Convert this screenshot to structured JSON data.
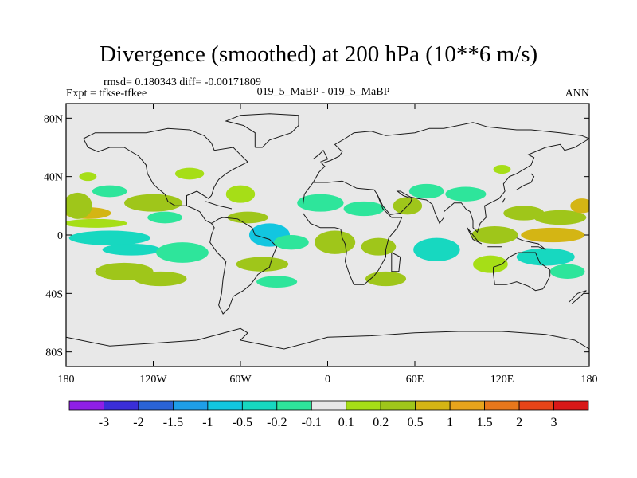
{
  "chart_data": {
    "type": "heatmap",
    "title": "Divergence (smoothed) at 200 hPa (10**6 m/s)",
    "stats": "rmsd= 0.180343  diff= -0.00171809",
    "expt": "Expt = tfkse-tfkee",
    "subtitle": "019_5_MaBP - 019_5_MaBP",
    "season": "ANN",
    "x_range": [
      -180,
      180
    ],
    "y_range": [
      -90,
      90
    ],
    "x_ticks": [
      {
        "value": -180,
        "label": "180"
      },
      {
        "value": -120,
        "label": "120W"
      },
      {
        "value": -60,
        "label": "60W"
      },
      {
        "value": 0,
        "label": "0"
      },
      {
        "value": 60,
        "label": "60E"
      },
      {
        "value": 120,
        "label": "120E"
      },
      {
        "value": 180,
        "label": "180"
      }
    ],
    "y_ticks": [
      {
        "value": 80,
        "label": "80N"
      },
      {
        "value": 40,
        "label": "40N"
      },
      {
        "value": 0,
        "label": "0"
      },
      {
        "value": -40,
        "label": "40S"
      },
      {
        "value": -80,
        "label": "80S"
      }
    ],
    "colorbar": {
      "labels": [
        "-3",
        "-2",
        "-1.5",
        "-1",
        "-0.5",
        "-0.2",
        "-0.1",
        "0.1",
        "0.2",
        "0.5",
        "1",
        "1.5",
        "2",
        "3"
      ],
      "colors": [
        "#8f1fe6",
        "#3a2ed8",
        "#2a63d6",
        "#1e9ee8",
        "#12c6e0",
        "#17d8c0",
        "#2ee59b",
        "#e8e8e8",
        "#a6de17",
        "#9fc61a",
        "#d4b514",
        "#e8a41c",
        "#e8771b",
        "#e84418",
        "#d81818"
      ]
    },
    "fields": [
      {
        "lon": -165,
        "lat": 15,
        "rx": 16,
        "ry": 4,
        "level": 10
      },
      {
        "lon": -172,
        "lat": 20,
        "rx": 10,
        "ry": 9,
        "level": 9
      },
      {
        "lon": -160,
        "lat": 8,
        "rx": 22,
        "ry": 3,
        "level": 8
      },
      {
        "lon": -150,
        "lat": 30,
        "rx": 12,
        "ry": 4,
        "level": 6
      },
      {
        "lon": -150,
        "lat": -2,
        "rx": 28,
        "ry": 5,
        "level": 5
      },
      {
        "lon": -135,
        "lat": -10,
        "rx": 20,
        "ry": 4,
        "level": 5
      },
      {
        "lon": -140,
        "lat": -25,
        "rx": 20,
        "ry": 6,
        "level": 9
      },
      {
        "lon": -115,
        "lat": -30,
        "rx": 18,
        "ry": 5,
        "level": 9
      },
      {
        "lon": -120,
        "lat": 22,
        "rx": 20,
        "ry": 6,
        "level": 9
      },
      {
        "lon": -112,
        "lat": 12,
        "rx": 12,
        "ry": 4,
        "level": 6
      },
      {
        "lon": -100,
        "lat": -12,
        "rx": 18,
        "ry": 7,
        "level": 6
      },
      {
        "lon": -95,
        "lat": 42,
        "rx": 10,
        "ry": 4,
        "level": 8
      },
      {
        "lon": -40,
        "lat": 0,
        "rx": 14,
        "ry": 8,
        "level": 4
      },
      {
        "lon": -25,
        "lat": -5,
        "rx": 12,
        "ry": 5,
        "level": 6
      },
      {
        "lon": -60,
        "lat": 28,
        "rx": 10,
        "ry": 6,
        "level": 8
      },
      {
        "lon": -55,
        "lat": 12,
        "rx": 14,
        "ry": 4,
        "level": 9
      },
      {
        "lon": -45,
        "lat": -20,
        "rx": 18,
        "ry": 5,
        "level": 9
      },
      {
        "lon": -35,
        "lat": -32,
        "rx": 14,
        "ry": 4,
        "level": 6
      },
      {
        "lon": -5,
        "lat": 22,
        "rx": 16,
        "ry": 6,
        "level": 6
      },
      {
        "lon": 25,
        "lat": 18,
        "rx": 14,
        "ry": 5,
        "level": 6
      },
      {
        "lon": 5,
        "lat": -5,
        "rx": 14,
        "ry": 8,
        "level": 9
      },
      {
        "lon": 35,
        "lat": -8,
        "rx": 12,
        "ry": 6,
        "level": 9
      },
      {
        "lon": 40,
        "lat": -30,
        "rx": 14,
        "ry": 5,
        "level": 9
      },
      {
        "lon": 55,
        "lat": 20,
        "rx": 10,
        "ry": 6,
        "level": 9
      },
      {
        "lon": 75,
        "lat": -10,
        "rx": 16,
        "ry": 8,
        "level": 5
      },
      {
        "lon": 68,
        "lat": 30,
        "rx": 12,
        "ry": 5,
        "level": 6
      },
      {
        "lon": 95,
        "lat": 28,
        "rx": 14,
        "ry": 5,
        "level": 6
      },
      {
        "lon": 115,
        "lat": 0,
        "rx": 16,
        "ry": 6,
        "level": 9
      },
      {
        "lon": 112,
        "lat": -20,
        "rx": 12,
        "ry": 6,
        "level": 8
      },
      {
        "lon": 135,
        "lat": 15,
        "rx": 14,
        "ry": 5,
        "level": 9
      },
      {
        "lon": 155,
        "lat": 0,
        "rx": 22,
        "ry": 5,
        "level": 10
      },
      {
        "lon": 160,
        "lat": 12,
        "rx": 18,
        "ry": 5,
        "level": 9
      },
      {
        "lon": 150,
        "lat": -15,
        "rx": 20,
        "ry": 6,
        "level": 5
      },
      {
        "lon": 165,
        "lat": -25,
        "rx": 12,
        "ry": 5,
        "level": 6
      },
      {
        "lon": 175,
        "lat": 20,
        "rx": 8,
        "ry": 5,
        "level": 10
      },
      {
        "lon": 120,
        "lat": 45,
        "rx": 6,
        "ry": 3,
        "level": 8
      },
      {
        "lon": -165,
        "lat": 40,
        "rx": 6,
        "ry": 3,
        "level": 8
      }
    ]
  }
}
